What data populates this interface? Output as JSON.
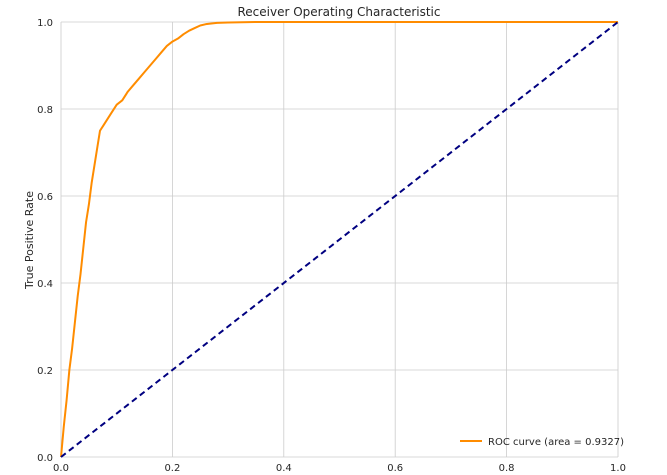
{
  "chart_data": {
    "type": "line",
    "title": "Receiver Operating Characteristic",
    "xlabel": "",
    "ylabel": "True Positive Rate",
    "xlim": [
      0.0,
      1.0
    ],
    "ylim": [
      0.0,
      1.0
    ],
    "x_ticks": [
      0.0,
      0.2,
      0.4,
      0.6,
      0.8,
      1.0
    ],
    "y_ticks": [
      0.0,
      0.2,
      0.4,
      0.6,
      0.8,
      1.0
    ],
    "x_tick_labels": [
      "0.0",
      "0.2",
      "0.4",
      "0.6",
      "0.8",
      "1.0"
    ],
    "y_tick_labels": [
      "0.0",
      "0.2",
      "0.4",
      "0.6",
      "0.8",
      "1.0"
    ],
    "grid": true,
    "legend_position": "bottom-right",
    "series": [
      {
        "name": "ROC curve (area = 0.9327)",
        "color": "#ff8c00",
        "style": "solid",
        "x": [
          0.0,
          0.005,
          0.01,
          0.015,
          0.02,
          0.025,
          0.03,
          0.035,
          0.04,
          0.045,
          0.05,
          0.055,
          0.06,
          0.065,
          0.07,
          0.075,
          0.08,
          0.09,
          0.1,
          0.11,
          0.12,
          0.13,
          0.14,
          0.15,
          0.16,
          0.17,
          0.18,
          0.19,
          0.2,
          0.21,
          0.22,
          0.23,
          0.24,
          0.25,
          0.26,
          0.28,
          0.3,
          0.35,
          0.4,
          0.5,
          0.6,
          0.7,
          0.8,
          0.9,
          1.0
        ],
        "y": [
          0.0,
          0.07,
          0.13,
          0.2,
          0.25,
          0.31,
          0.37,
          0.42,
          0.48,
          0.54,
          0.58,
          0.63,
          0.67,
          0.71,
          0.75,
          0.76,
          0.77,
          0.79,
          0.81,
          0.82,
          0.84,
          0.855,
          0.87,
          0.885,
          0.9,
          0.915,
          0.93,
          0.945,
          0.955,
          0.962,
          0.972,
          0.98,
          0.986,
          0.992,
          0.995,
          0.998,
          0.999,
          1.0,
          1.0,
          1.0,
          1.0,
          1.0,
          1.0,
          1.0,
          1.0
        ]
      },
      {
        "color": "#000080",
        "style": "dashed",
        "x": [
          0.0,
          1.0
        ],
        "y": [
          0.0,
          1.0
        ]
      }
    ]
  }
}
